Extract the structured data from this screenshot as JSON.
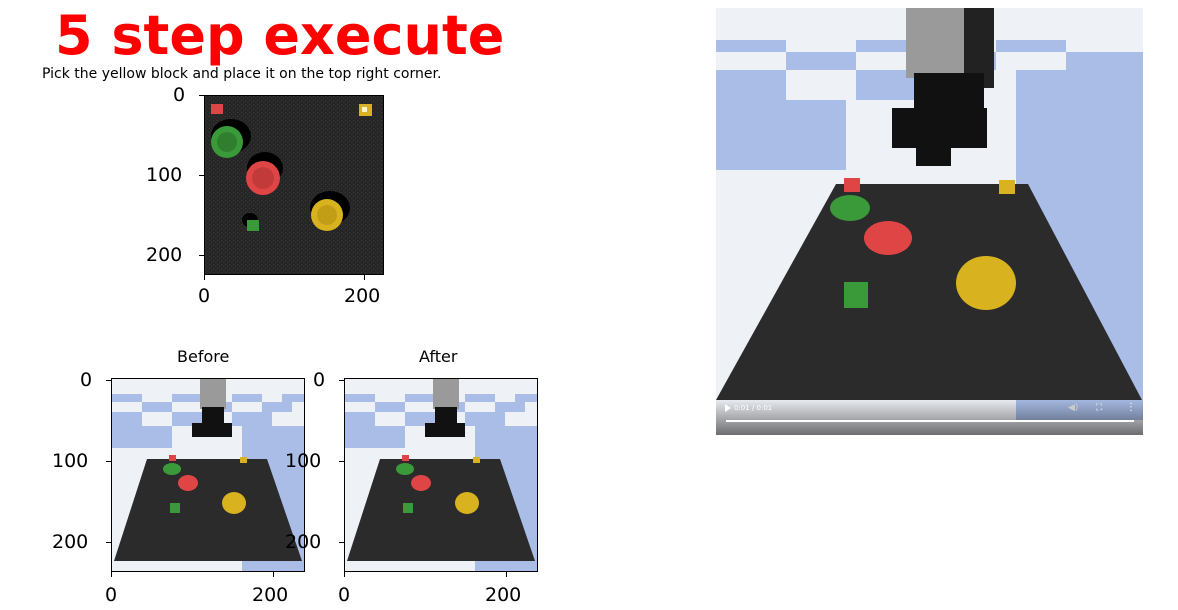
{
  "header": {
    "title": "5 step execute",
    "instruction": "Pick the yellow block and place it on the top right corner."
  },
  "top_plot": {
    "y_ticks": [
      "0",
      "100",
      "200"
    ],
    "x_ticks": [
      "0",
      "200"
    ]
  },
  "before_plot": {
    "title": "Before",
    "y_ticks": [
      "0",
      "100",
      "200"
    ],
    "x_ticks": [
      "0",
      "200"
    ]
  },
  "after_plot": {
    "title": "After",
    "y_ticks": [
      "0",
      "100",
      "200"
    ],
    "x_ticks": [
      "0",
      "200"
    ]
  },
  "video": {
    "time": "0:01 / 0:01",
    "play_icon": "play-icon",
    "volume_icon": "volume-icon",
    "fullscreen_icon": "fullscreen-icon",
    "more_icon": "more-options-icon"
  },
  "colors": {
    "title": "#ff0000",
    "table": "#2b2b2b",
    "floor_blue": "#a9bde6",
    "floor_white": "#eef1f6",
    "yellow": "#d9b21f",
    "red": "#e04545",
    "green": "#3a9a3a"
  }
}
